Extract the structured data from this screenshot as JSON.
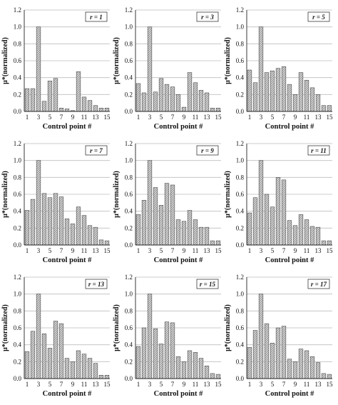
{
  "chart_data": [
    {
      "type": "bar",
      "r_label": "r = 1",
      "xlabel": "Control point #",
      "ylabel": "μ*(normalized)",
      "ylim": [
        0,
        1.2
      ],
      "x": [
        1,
        2,
        3,
        4,
        5,
        6,
        7,
        8,
        9,
        10,
        11,
        12,
        13,
        14,
        15
      ],
      "values": [
        0.27,
        0.27,
        1.0,
        0.12,
        0.36,
        0.39,
        0.04,
        0.03,
        0.01,
        0.47,
        0.17,
        0.13,
        0.07,
        0.04,
        0.04
      ],
      "yticks": [
        "0.0",
        "0.2",
        "0.4",
        "0.6",
        "0.8",
        "1.0",
        "1.2"
      ],
      "xticks": [
        "1",
        "3",
        "5",
        "7",
        "9",
        "11",
        "13",
        "15"
      ]
    },
    {
      "type": "bar",
      "r_label": "r = 3",
      "xlabel": "Control point #",
      "ylabel": "μ*(normalized)",
      "ylim": [
        0,
        1.2
      ],
      "x": [
        1,
        2,
        3,
        4,
        5,
        6,
        7,
        8,
        9,
        10,
        11,
        12,
        13,
        14,
        15
      ],
      "values": [
        0.33,
        0.22,
        1.0,
        0.23,
        0.39,
        0.32,
        0.29,
        0.2,
        0.05,
        0.46,
        0.34,
        0.25,
        0.22,
        0.04,
        0.04
      ],
      "yticks": [
        "0.0",
        "0.2",
        "0.4",
        "0.6",
        "0.8",
        "1.0",
        "1.2"
      ],
      "xticks": [
        "1",
        "3",
        "5",
        "7",
        "9",
        "11",
        "13",
        "15"
      ]
    },
    {
      "type": "bar",
      "r_label": "r = 5",
      "xlabel": "Control point #",
      "ylabel": "μ*(normalized)",
      "ylim": [
        0,
        1.2
      ],
      "x": [
        1,
        2,
        3,
        4,
        5,
        6,
        7,
        8,
        9,
        10,
        11,
        12,
        13,
        14,
        15
      ],
      "values": [
        0.49,
        0.34,
        1.0,
        0.46,
        0.48,
        0.51,
        0.53,
        0.32,
        0.2,
        0.46,
        0.37,
        0.28,
        0.2,
        0.07,
        0.07
      ],
      "yticks": [
        "0.0",
        "0.2",
        "0.4",
        "0.6",
        "0.8",
        "1.0",
        "1.2"
      ],
      "xticks": [
        "1",
        "3",
        "5",
        "7",
        "9",
        "11",
        "13",
        "15"
      ]
    },
    {
      "type": "bar",
      "r_label": "r = 7",
      "xlabel": "Control point #",
      "ylabel": "μ*(normalized)",
      "ylim": [
        0,
        1.2
      ],
      "x": [
        1,
        2,
        3,
        4,
        5,
        6,
        7,
        8,
        9,
        10,
        11,
        12,
        13,
        14,
        15
      ],
      "values": [
        0.41,
        0.54,
        1.0,
        0.61,
        0.56,
        0.61,
        0.57,
        0.31,
        0.25,
        0.45,
        0.35,
        0.23,
        0.21,
        0.06,
        0.05
      ],
      "yticks": [
        "0.0",
        "0.2",
        "0.4",
        "0.6",
        "0.8",
        "1.0",
        "1.2"
      ],
      "xticks": [
        "1",
        "3",
        "5",
        "7",
        "9",
        "11",
        "13",
        "15"
      ]
    },
    {
      "type": "bar",
      "r_label": "r = 9",
      "xlabel": "Control point #",
      "ylabel": "μ*(normalized)",
      "ylim": [
        0,
        1.2
      ],
      "x": [
        1,
        2,
        3,
        4,
        5,
        6,
        7,
        8,
        9,
        10,
        11,
        12,
        13,
        14,
        15
      ],
      "values": [
        0.36,
        0.53,
        1.0,
        0.68,
        0.47,
        0.73,
        0.71,
        0.3,
        0.28,
        0.41,
        0.3,
        0.21,
        0.21,
        0.05,
        0.05
      ],
      "yticks": [
        "0.0",
        "0.2",
        "0.4",
        "0.6",
        "0.8",
        "1.0",
        "1.2"
      ],
      "xticks": [
        "1",
        "3",
        "5",
        "7",
        "9",
        "11",
        "13",
        "15"
      ]
    },
    {
      "type": "bar",
      "r_label": "r = 11",
      "xlabel": "Control point #",
      "ylabel": "μ*(normalized)",
      "ylim": [
        0,
        1.2
      ],
      "x": [
        1,
        2,
        3,
        4,
        5,
        6,
        7,
        8,
        9,
        10,
        11,
        12,
        13,
        14,
        15
      ],
      "values": [
        0.38,
        0.56,
        1.0,
        0.6,
        0.45,
        0.8,
        0.77,
        0.29,
        0.23,
        0.36,
        0.3,
        0.22,
        0.21,
        0.05,
        0.05
      ],
      "yticks": [
        "0.0",
        "0.2",
        "0.4",
        "0.6",
        "0.8",
        "1.0",
        "1.2"
      ],
      "xticks": [
        "1",
        "3",
        "5",
        "7",
        "9",
        "11",
        "13",
        "15"
      ]
    },
    {
      "type": "bar",
      "r_label": "r = 13",
      "xlabel": "Control point #",
      "ylabel": "μ*(normalized)",
      "ylim": [
        0,
        1.2
      ],
      "x": [
        1,
        2,
        3,
        4,
        5,
        6,
        7,
        8,
        9,
        10,
        11,
        12,
        13,
        14,
        15
      ],
      "values": [
        0.32,
        0.56,
        1.0,
        0.53,
        0.36,
        0.68,
        0.65,
        0.24,
        0.2,
        0.33,
        0.29,
        0.24,
        0.18,
        0.04,
        0.04
      ],
      "yticks": [
        "0.0",
        "0.2",
        "0.4",
        "0.6",
        "0.8",
        "1.0",
        "1.2"
      ],
      "xticks": [
        "1",
        "3",
        "5",
        "7",
        "9",
        "11",
        "13",
        "15"
      ]
    },
    {
      "type": "bar",
      "r_label": "r = 15",
      "xlabel": "Control point #",
      "ylabel": "μ*(normalized)",
      "ylim": [
        0,
        1.2
      ],
      "x": [
        1,
        2,
        3,
        4,
        5,
        6,
        7,
        8,
        9,
        10,
        11,
        12,
        13,
        14,
        15
      ],
      "values": [
        0.38,
        0.6,
        1.0,
        0.59,
        0.41,
        0.67,
        0.66,
        0.26,
        0.2,
        0.33,
        0.31,
        0.24,
        0.15,
        0.06,
        0.05
      ],
      "yticks": [
        "0.0",
        "0.2",
        "0.4",
        "0.6",
        "0.8",
        "1.0",
        "1.2"
      ],
      "xticks": [
        "1",
        "3",
        "5",
        "7",
        "9",
        "11",
        "13",
        "15"
      ]
    },
    {
      "type": "bar",
      "r_label": "r = 17",
      "xlabel": "Control point #",
      "ylabel": "μ*(normalized)",
      "ylim": [
        0,
        1.2
      ],
      "x": [
        1,
        2,
        3,
        4,
        5,
        6,
        7,
        8,
        9,
        10,
        11,
        12,
        13,
        14,
        15
      ],
      "values": [
        0.37,
        0.57,
        1.0,
        0.65,
        0.42,
        0.6,
        0.62,
        0.23,
        0.2,
        0.35,
        0.33,
        0.26,
        0.19,
        0.06,
        0.05
      ],
      "yticks": [
        "0.0",
        "0.2",
        "0.4",
        "0.6",
        "0.8",
        "1.0",
        "1.2"
      ],
      "xticks": [
        "1",
        "3",
        "5",
        "7",
        "9",
        "11",
        "13",
        "15"
      ]
    }
  ],
  "colors": {
    "bar_fill": "#d8d8d8",
    "bar_hatch": "#666666",
    "bar_stroke": "#333333",
    "grid": "#bdbdbd",
    "axis": "#222222"
  }
}
